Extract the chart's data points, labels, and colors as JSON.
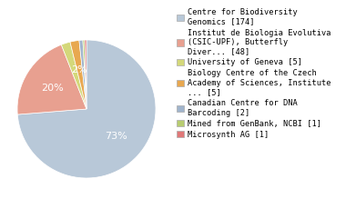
{
  "labels": [
    "Centre for Biodiversity\nGenomics [174]",
    "Institut de Biologia Evolutiva\n(CSIC-UPF), Butterfly\nDiver... [48]",
    "University of Geneva [5]",
    "Biology Centre of the Czech\nAcademy of Sciences, Institute\n... [5]",
    "Canadian Centre for DNA\nBarcoding [2]",
    "Mined from GenBank, NCBI [1]",
    "Microsynth AG [1]"
  ],
  "values": [
    174,
    48,
    5,
    5,
    2,
    1,
    1
  ],
  "colors": [
    "#b8c8d8",
    "#e8a090",
    "#d4d87a",
    "#e8a850",
    "#a0b4cc",
    "#b8cc70",
    "#e07878"
  ],
  "pct_labels": [
    "73%",
    "20%",
    "",
    "2%",
    "",
    "",
    ""
  ],
  "text_color": "#ffffff",
  "startangle": 90,
  "legend_fontsize": 6.2,
  "pct_fontsize": 8
}
